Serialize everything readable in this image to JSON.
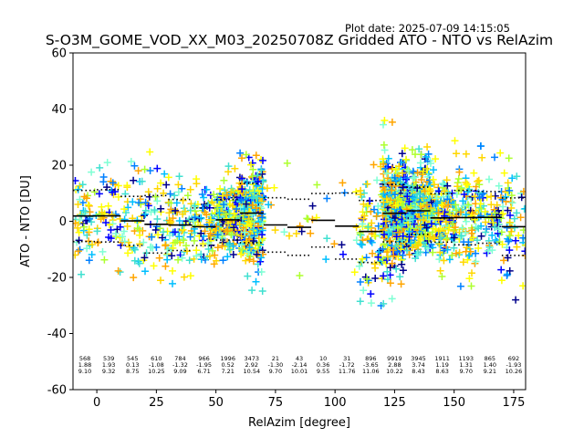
{
  "chart_data": {
    "type": "scatter",
    "title": "S-O3M_GOME_VOD_XX_M03_20250708Z Gridded ATO - NTO vs RelAzim",
    "plot_date": "Plot date: 2025-07-09 14:15:05",
    "xlabel": "RelAzim [degree]",
    "ylabel": "ATO - NTO [DU]",
    "xlim": [
      -10,
      180
    ],
    "ylim": [
      -60,
      60
    ],
    "x_ticks": [
      0,
      25,
      50,
      75,
      100,
      125,
      150,
      175
    ],
    "y_ticks": [
      -60,
      -40,
      -20,
      0,
      20,
      40,
      60
    ],
    "grid": false,
    "marker": "+",
    "bins": [
      {
        "x_start": -10,
        "x_end": 0,
        "count": "568",
        "mean": "1.88",
        "std": "9.10"
      },
      {
        "x_start": 0,
        "x_end": 10,
        "count": "539",
        "mean": "1.93",
        "std": "9.32"
      },
      {
        "x_start": 10,
        "x_end": 20,
        "count": "545",
        "mean": "0.13",
        "std": "8.75"
      },
      {
        "x_start": 20,
        "x_end": 30,
        "count": "610",
        "mean": "-1.08",
        "std": "10.25"
      },
      {
        "x_start": 30,
        "x_end": 40,
        "count": "784",
        "mean": "-1.32",
        "std": "9.09"
      },
      {
        "x_start": 40,
        "x_end": 50,
        "count": "966",
        "mean": "-1.95",
        "std": "6.71"
      },
      {
        "x_start": 50,
        "x_end": 60,
        "count": "1996",
        "mean": "0.52",
        "std": "7.21"
      },
      {
        "x_start": 60,
        "x_end": 70,
        "count": "3473",
        "mean": "2.92",
        "std": "10.54"
      },
      {
        "x_start": 70,
        "x_end": 80,
        "count": "21",
        "mean": "-1.30",
        "std": "9.70"
      },
      {
        "x_start": 80,
        "x_end": 90,
        "count": "43",
        "mean": "-2.14",
        "std": "10.01"
      },
      {
        "x_start": 90,
        "x_end": 100,
        "count": "10",
        "mean": "0.36",
        "std": "9.55"
      },
      {
        "x_start": 100,
        "x_end": 110,
        "count": "31",
        "mean": "-1.72",
        "std": "11.76"
      },
      {
        "x_start": 110,
        "x_end": 120,
        "count": "896",
        "mean": "-3.65",
        "std": "11.06"
      },
      {
        "x_start": 120,
        "x_end": 130,
        "count": "9919",
        "mean": "2.88",
        "std": "10.22"
      },
      {
        "x_start": 130,
        "x_end": 140,
        "count": "3945",
        "mean": "3.74",
        "std": "8.43"
      },
      {
        "x_start": 140,
        "x_end": 150,
        "count": "1911",
        "mean": "1.19",
        "std": "8.63"
      },
      {
        "x_start": 150,
        "x_end": 160,
        "count": "1193",
        "mean": "1.31",
        "std": "9.70"
      },
      {
        "x_start": 160,
        "x_end": 170,
        "count": "865",
        "mean": "1.40",
        "std": "9.21"
      },
      {
        "x_start": 170,
        "x_end": 180,
        "count": "692",
        "mean": "-1.93",
        "std": "10.26"
      }
    ],
    "point_colors": [
      "#00008b",
      "#0000ff",
      "#0080ff",
      "#00bfff",
      "#40e0d0",
      "#7fffd4",
      "#adff2f",
      "#ffff00",
      "#ffd700",
      "#ffa500"
    ]
  }
}
